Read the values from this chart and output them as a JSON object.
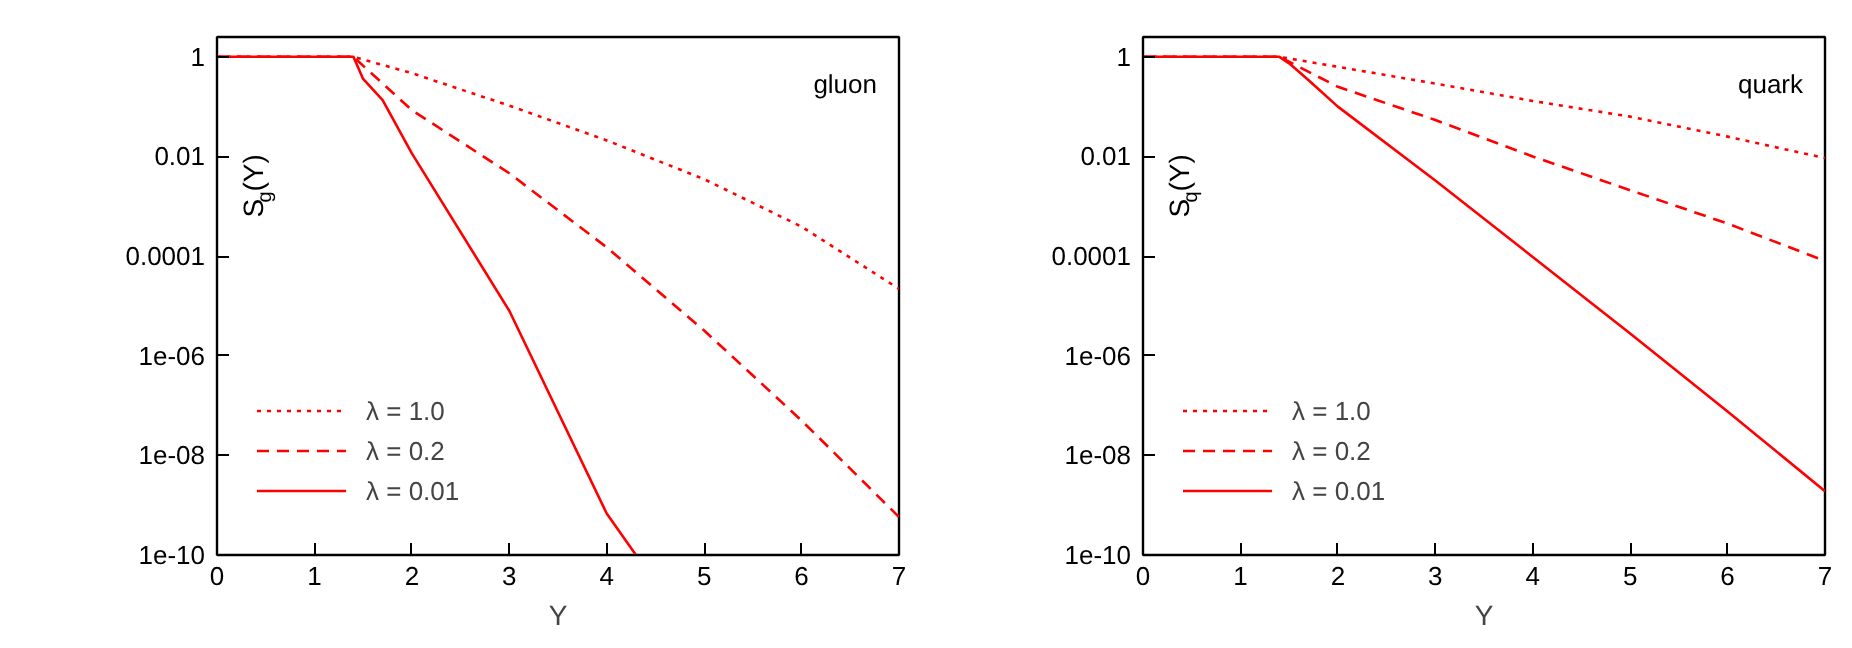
{
  "chart_data": [
    {
      "type": "line",
      "xlabel": "Y",
      "ylabel": "S$_{g}$(Y)",
      "annotations": [
        "gluon"
      ],
      "log": "y",
      "grid": false,
      "legend": "bottom left",
      "marker": "none",
      "xlim": [
        0,
        7
      ],
      "xticks": [
        0,
        1,
        2,
        3,
        4,
        5,
        6,
        7
      ],
      "ylim": [
        1e-10,
        2.5
      ],
      "yticks": [
        {
          "value": 1,
          "label": "1"
        },
        {
          "value": 0.01,
          "label": "0.01"
        },
        {
          "value": 0.0001,
          "label": "0.0001"
        },
        {
          "value": 1e-06,
          "label": "1e-06"
        },
        {
          "value": 1e-08,
          "label": "1e-08"
        },
        {
          "value": 1e-10,
          "label": "1e-10"
        }
      ],
      "series": [
        {
          "name": "λ = 1.0",
          "color": "#ff0000",
          "line_style": "dotted",
          "x": [
            0,
            1.4,
            2,
            3,
            4,
            5,
            6,
            7
          ],
          "values": [
            1,
            1,
            0.47,
            0.105,
            0.021,
            0.0035,
            0.00039,
            2.2e-05
          ]
        },
        {
          "name": "λ = 0.2",
          "color": "#ff0000",
          "line_style": "dashed",
          "x": [
            0,
            1.4,
            2,
            3,
            4,
            5,
            6,
            7
          ],
          "values": [
            1,
            1,
            0.085,
            0.0046,
            0.00015,
            3.2e-06,
            5e-08,
            5.8e-10
          ]
        },
        {
          "name": "λ = 0.01",
          "color": "#ff0000",
          "line_style": "solid",
          "x": [
            0,
            1.4,
            1.5,
            1.7,
            2,
            3,
            4,
            4.3
          ],
          "values": [
            1,
            1,
            0.36,
            0.135,
            0.0115,
            8e-06,
            6.8e-10,
            1e-10
          ]
        }
      ]
    },
    {
      "type": "line",
      "xlabel": "Y",
      "ylabel": "S$_{q}$(Y)",
      "annotations": [
        "quark"
      ],
      "log": "y",
      "grid": false,
      "legend": "bottom left",
      "marker": "none",
      "xlim": [
        0,
        7
      ],
      "xticks": [
        0,
        1,
        2,
        3,
        4,
        5,
        6,
        7
      ],
      "ylim": [
        1e-10,
        2.5
      ],
      "yticks": [
        {
          "value": 1,
          "label": "1"
        },
        {
          "value": 0.01,
          "label": "0.01"
        },
        {
          "value": 0.0001,
          "label": "0.0001"
        },
        {
          "value": 1e-06,
          "label": "1e-06"
        },
        {
          "value": 1e-08,
          "label": "1e-08"
        },
        {
          "value": 1e-10,
          "label": "1e-10"
        }
      ],
      "series": [
        {
          "name": "λ = 1.0",
          "color": "#ff0000",
          "line_style": "dotted",
          "x": [
            0,
            1.4,
            2,
            3,
            4,
            5,
            6,
            7
          ],
          "values": [
            1,
            1,
            0.63,
            0.29,
            0.13,
            0.063,
            0.025,
            0.0093
          ]
        },
        {
          "name": "λ = 0.2",
          "color": "#ff0000",
          "line_style": "dashed",
          "x": [
            0,
            1.4,
            2,
            3,
            4,
            5,
            6,
            7
          ],
          "values": [
            1,
            1,
            0.25,
            0.054,
            0.01,
            0.0021,
            0.00045,
            8e-05
          ]
        },
        {
          "name": "λ = 0.01",
          "color": "#ff0000",
          "line_style": "solid",
          "x": [
            0,
            1.4,
            1.5,
            1.7,
            2,
            3,
            4,
            5,
            6,
            7
          ],
          "values": [
            1,
            1,
            0.74,
            0.34,
            0.1,
            0.0033,
            9.6e-05,
            2.8e-06,
            7.6e-08,
            1.9e-09
          ]
        }
      ]
    }
  ]
}
